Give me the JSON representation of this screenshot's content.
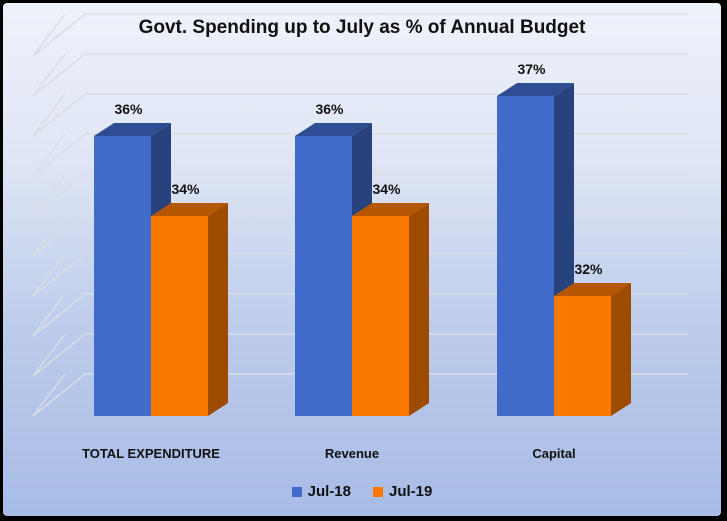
{
  "chart_data": {
    "type": "bar",
    "title": "Govt. Spending up to July as % of Annual Budget",
    "categories": [
      "TOTAL EXPENDITURE",
      "Revenue",
      "Capital"
    ],
    "series": [
      {
        "name": "Jul-18",
        "values": [
          36,
          36,
          37
        ],
        "labels": [
          "36%",
          "36%",
          "37%"
        ],
        "color": "#416bcb"
      },
      {
        "name": "Jul-19",
        "values": [
          34,
          34,
          32
        ],
        "labels": [
          "34%",
          "34%",
          "32%"
        ],
        "color": "#fb7900"
      }
    ],
    "ylim": [
      29,
      38
    ],
    "grid": true,
    "legend": "bottom",
    "style": "3d-column"
  }
}
